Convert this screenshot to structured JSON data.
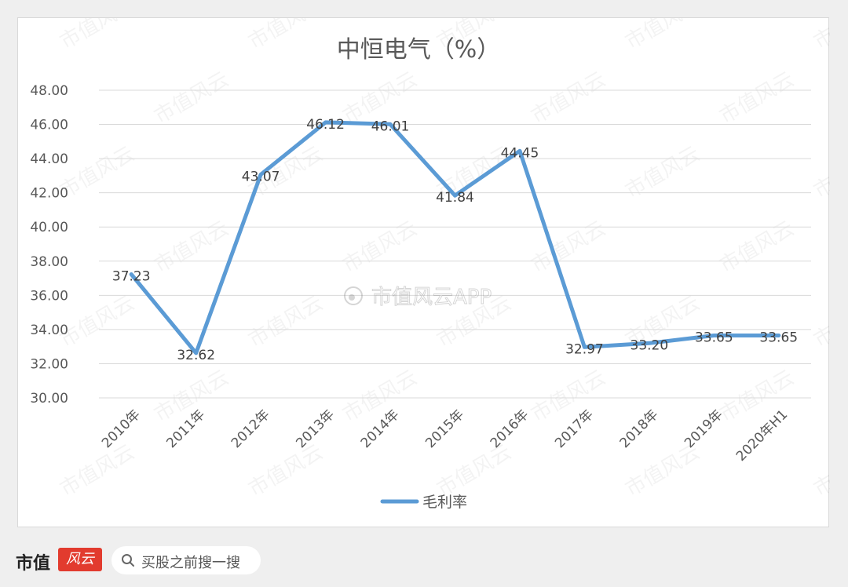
{
  "colors": {
    "line": "#5b9bd5",
    "grid": "#d9d9d9",
    "text": "#595959",
    "brand_red": "#e23b2e"
  },
  "watermark": {
    "center": "市值风云APP",
    "tile": "市值风云"
  },
  "footer": {
    "brand": "市值",
    "brand_mark": "风云",
    "search_placeholder": "买股之前搜一搜",
    "search_icon": "search-icon"
  },
  "chart_data": {
    "type": "line",
    "title": "中恒电气（%）",
    "categories": [
      "2010年",
      "2011年",
      "2012年",
      "2013年",
      "2014年",
      "2015年",
      "2016年",
      "2017年",
      "2018年",
      "2019年",
      "2020年H1"
    ],
    "series": [
      {
        "name": "毛利率",
        "values": [
          37.23,
          32.62,
          43.07,
          46.12,
          46.01,
          41.84,
          44.45,
          32.97,
          33.2,
          33.65,
          33.65
        ]
      }
    ],
    "data_labels": [
      "37.23",
      "32.62",
      "43.07",
      "46.12",
      "46.01",
      "41.84",
      "44.45",
      "32.97",
      "33.20",
      "33.65",
      "33.65"
    ],
    "yticks": [
      "30.00",
      "32.00",
      "34.00",
      "36.00",
      "38.00",
      "40.00",
      "42.00",
      "44.00",
      "46.00",
      "48.00"
    ],
    "ylim": [
      30,
      48
    ],
    "grid": true,
    "legend": "bottom"
  }
}
